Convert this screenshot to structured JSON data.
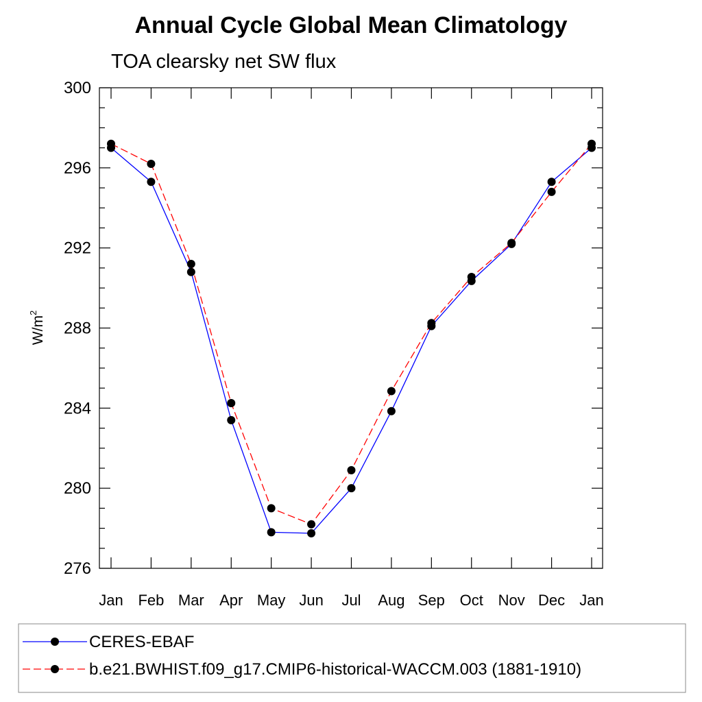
{
  "chart_data": {
    "type": "line",
    "title": "Annual Cycle Global Mean Climatology",
    "subtitle": "TOA clearsky net SW flux",
    "ylabel": "W/m",
    "ylabel_superscript": "2",
    "ylim": [
      276,
      300
    ],
    "yticks": [
      276,
      280,
      284,
      288,
      292,
      296,
      300
    ],
    "ytick_labels": [
      "276",
      "280",
      "284",
      "288",
      "292",
      "296",
      "300"
    ],
    "categories": [
      "Jan",
      "Feb",
      "Mar",
      "Apr",
      "May",
      "Jun",
      "Jul",
      "Aug",
      "Sep",
      "Oct",
      "Nov",
      "Dec",
      "Jan"
    ],
    "grid": false,
    "legend_position": "bottom",
    "series": [
      {
        "name": "CERES-EBAF",
        "color": "#0000ff",
        "line_style": "solid",
        "marker": "circle",
        "values": [
          297.0,
          295.3,
          290.8,
          283.4,
          277.8,
          277.75,
          280.0,
          283.85,
          288.1,
          290.35,
          292.2,
          295.3,
          297.0
        ]
      },
      {
        "name": "b.e21.BWHIST.f09_g17.CMIP6-historical-WACCM.003 (1881-1910)",
        "color": "#ff0000",
        "line_style": "dashed",
        "marker": "circle",
        "values": [
          297.2,
          296.2,
          291.2,
          284.25,
          279.0,
          278.2,
          280.9,
          284.85,
          288.25,
          290.55,
          292.25,
          294.8,
          297.2
        ]
      }
    ]
  }
}
